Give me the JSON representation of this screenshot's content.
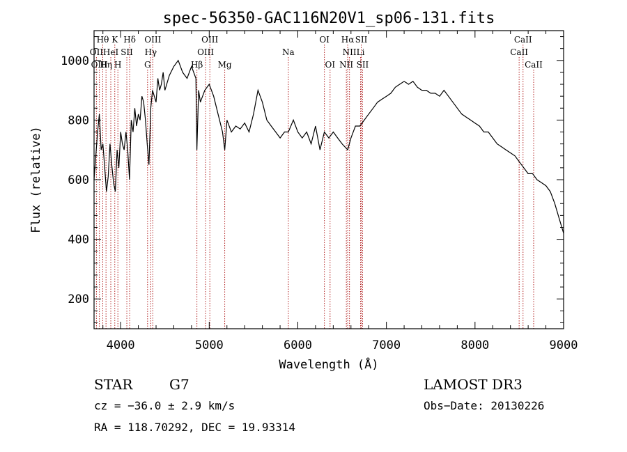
{
  "chart_data": {
    "type": "line",
    "title": "spec-56350-GAC116N20V1_sp06-131.fits",
    "xlabel": "Wavelength (Å)",
    "ylabel": "Flux (relative)",
    "xlim": [
      3700,
      9000
    ],
    "ylim": [
      100,
      1100
    ],
    "xticks": [
      4000,
      5000,
      6000,
      7000,
      8000,
      9000
    ],
    "yticks": [
      200,
      400,
      600,
      800,
      1000
    ],
    "grid": false,
    "series": [
      {
        "name": "flux",
        "x": [
          3700,
          3720,
          3740,
          3760,
          3780,
          3800,
          3820,
          3840,
          3860,
          3880,
          3900,
          3920,
          3940,
          3960,
          3980,
          4000,
          4020,
          4040,
          4060,
          4080,
          4100,
          4120,
          4140,
          4160,
          4180,
          4200,
          4220,
          4240,
          4260,
          4280,
          4300,
          4320,
          4340,
          4360,
          4380,
          4400,
          4420,
          4440,
          4460,
          4480,
          4500,
          4550,
          4600,
          4650,
          4700,
          4750,
          4800,
          4850,
          4861,
          4880,
          4900,
          4950,
          5000,
          5050,
          5100,
          5150,
          5175,
          5200,
          5250,
          5300,
          5350,
          5400,
          5450,
          5500,
          5550,
          5600,
          5650,
          5700,
          5750,
          5800,
          5850,
          5893,
          5950,
          6000,
          6050,
          6100,
          6150,
          6200,
          6250,
          6300,
          6350,
          6400,
          6450,
          6500,
          6563,
          6600,
          6650,
          6700,
          6750,
          6800,
          6850,
          6900,
          6950,
          7000,
          7050,
          7100,
          7150,
          7200,
          7250,
          7300,
          7350,
          7400,
          7450,
          7500,
          7550,
          7600,
          7650,
          7700,
          7750,
          7800,
          7850,
          7900,
          7950,
          8000,
          8050,
          8100,
          8150,
          8200,
          8250,
          8300,
          8350,
          8400,
          8450,
          8500,
          8550,
          8600,
          8650,
          8700,
          8750,
          8800,
          8850,
          8900,
          8950,
          9000
        ],
        "y": [
          600,
          680,
          760,
          820,
          700,
          720,
          640,
          560,
          610,
          720,
          650,
          590,
          560,
          700,
          640,
          760,
          720,
          700,
          760,
          700,
          600,
          800,
          760,
          840,
          780,
          820,
          800,
          880,
          860,
          800,
          720,
          650,
          840,
          900,
          880,
          860,
          940,
          900,
          920,
          960,
          900,
          950,
          980,
          1000,
          960,
          940,
          980,
          940,
          700,
          900,
          860,
          900,
          920,
          880,
          820,
          760,
          700,
          800,
          760,
          780,
          770,
          790,
          760,
          820,
          900,
          860,
          800,
          780,
          760,
          740,
          760,
          760,
          800,
          760,
          740,
          760,
          720,
          780,
          700,
          760,
          740,
          760,
          740,
          720,
          700,
          740,
          780,
          780,
          800,
          820,
          840,
          860,
          870,
          880,
          890,
          910,
          920,
          930,
          920,
          930,
          910,
          900,
          900,
          890,
          890,
          880,
          900,
          880,
          860,
          840,
          820,
          810,
          800,
          790,
          780,
          760,
          760,
          740,
          720,
          710,
          700,
          690,
          680,
          660,
          640,
          620,
          620,
          600,
          590,
          580,
          560,
          520,
          470,
          420
        ]
      }
    ],
    "line_markers": [
      {
        "label": "Hθ",
        "wavelength": 3798,
        "row": 0
      },
      {
        "label": "OII",
        "wavelength": 3727,
        "row": 1
      },
      {
        "label": "OIII",
        "wavelength": 3760,
        "row": 2
      },
      {
        "label": "K",
        "wavelength": 3934,
        "row": 0
      },
      {
        "label": "HeI",
        "wavelength": 3889,
        "row": 1
      },
      {
        "label": "Hη",
        "wavelength": 3835,
        "row": 2
      },
      {
        "label": "SII",
        "wavelength": 4070,
        "row": 1
      },
      {
        "label": "H",
        "wavelength": 3969,
        "row": 2
      },
      {
        "label": "Hδ",
        "wavelength": 4102,
        "row": 0
      },
      {
        "label": "OIII",
        "wavelength": 4363,
        "row": 0
      },
      {
        "label": "Hγ",
        "wavelength": 4340,
        "row": 1
      },
      {
        "label": "G",
        "wavelength": 4304,
        "row": 2
      },
      {
        "label": "Hβ",
        "wavelength": 4861,
        "row": 2
      },
      {
        "label": "OIII",
        "wavelength": 5007,
        "row": 0
      },
      {
        "label": "OIII",
        "wavelength": 4959,
        "row": 1
      },
      {
        "label": "Mg",
        "wavelength": 5175,
        "row": 2
      },
      {
        "label": "Na",
        "wavelength": 5893,
        "row": 1
      },
      {
        "label": "OI",
        "wavelength": 6300,
        "row": 0
      },
      {
        "label": "OI",
        "wavelength": 6364,
        "row": 2
      },
      {
        "label": "Hα",
        "wavelength": 6563,
        "row": 0
      },
      {
        "label": "NII",
        "wavelength": 6583,
        "row": 1
      },
      {
        "label": "NII",
        "wavelength": 6548,
        "row": 2
      },
      {
        "label": "SII",
        "wavelength": 6716,
        "row": 0
      },
      {
        "label": "Li",
        "wavelength": 6708,
        "row": 1
      },
      {
        "label": "SII",
        "wavelength": 6731,
        "row": 2
      },
      {
        "label": "CaII",
        "wavelength": 8542,
        "row": 0
      },
      {
        "label": "CaII",
        "wavelength": 8498,
        "row": 1
      },
      {
        "label": "CaII",
        "wavelength": 8662,
        "row": 2
      }
    ]
  },
  "info": {
    "object_class": "STAR",
    "subclass": "G7",
    "survey": "LAMOST DR3",
    "cz": "cz = −36.0 ± 2.9 km/s",
    "obs_date": "Obs−Date: 20130226",
    "coords": "RA = 118.70292, DEC =  19.93314"
  },
  "colors": {
    "axes": "#000000",
    "spectrum": "#000000",
    "marker_lines": "#b22222",
    "background": "#ffffff"
  }
}
